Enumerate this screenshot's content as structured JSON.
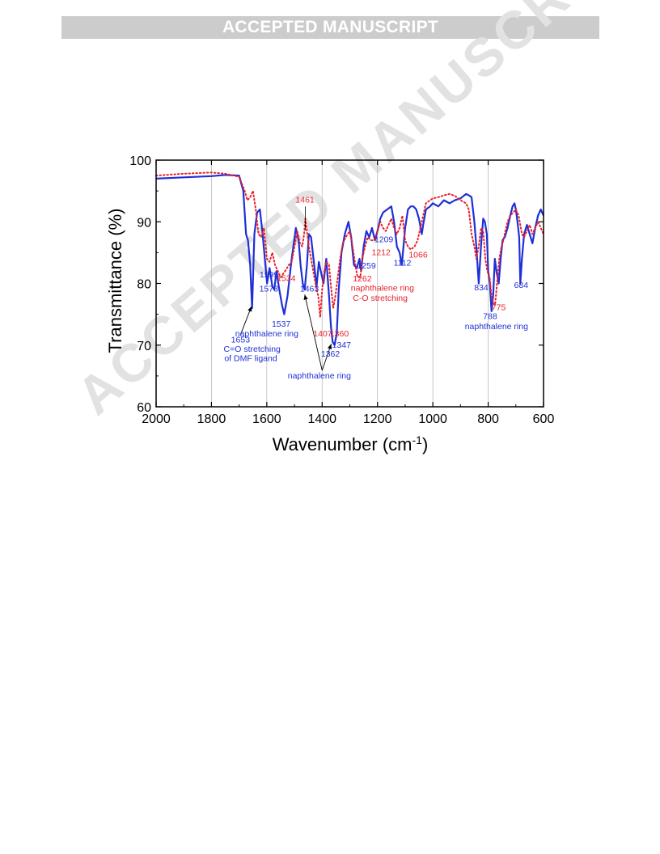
{
  "header": {
    "banner_text": "ACCEPTED MANUSCRIPT"
  },
  "watermark": {
    "text": "ACCEPTED MANUSCRIPT",
    "color": "#e2e2e2"
  },
  "chart_data": {
    "type": "line",
    "title": "",
    "xlabel": "Wavenumber (cm",
    "xlabel_sup": "-1",
    "xlabel_close": ")",
    "ylabel": "Transmittance (%)",
    "xlim": [
      2000,
      600
    ],
    "ylim": [
      60,
      100
    ],
    "x_reversed": true,
    "xticks": [
      2000,
      1800,
      1600,
      1400,
      1200,
      1000,
      800,
      600
    ],
    "yticks": [
      60,
      70,
      80,
      90,
      100
    ],
    "grid": "vertical",
    "colors": {
      "blue": "#1f2fd8",
      "red": "#e8212a",
      "grid": "#bbbbbb"
    },
    "series": [
      {
        "color": "#1f2fd8",
        "style": "solid",
        "x": [
          2000,
          1900,
          1800,
          1750,
          1700,
          1685,
          1675,
          1668,
          1660,
          1653,
          1645,
          1635,
          1625,
          1615,
          1605,
          1599,
          1590,
          1580,
          1573,
          1565,
          1555,
          1545,
          1537,
          1525,
          1510,
          1495,
          1485,
          1478,
          1470,
          1463,
          1455,
          1448,
          1440,
          1430,
          1420,
          1412,
          1405,
          1395,
          1385,
          1375,
          1368,
          1362,
          1355,
          1347,
          1340,
          1330,
          1318,
          1305,
          1295,
          1285,
          1275,
          1265,
          1259,
          1250,
          1240,
          1230,
          1220,
          1209,
          1200,
          1190,
          1180,
          1165,
          1150,
          1140,
          1130,
          1120,
          1112,
          1100,
          1090,
          1080,
          1070,
          1060,
          1050,
          1040,
          1035,
          1025,
          1010,
          1000,
          980,
          960,
          940,
          920,
          900,
          880,
          870,
          860,
          850,
          843,
          834,
          826,
          818,
          812,
          805,
          800,
          794,
          788,
          782,
          776,
          770,
          762,
          755,
          748,
          740,
          730,
          720,
          712,
          705,
          700,
          694,
          688,
          684,
          678,
          670,
          660,
          650,
          640,
          630,
          620,
          610,
          600
        ],
        "y": [
          97.0,
          97.2,
          97.4,
          97.6,
          97.5,
          95.0,
          88.0,
          87.0,
          83.0,
          76.0,
          88.0,
          91.5,
          92.0,
          88.0,
          83.0,
          80.0,
          82.5,
          79.5,
          79.0,
          82.0,
          79.0,
          76.5,
          75.0,
          78.0,
          84.0,
          89.0,
          87.0,
          83.0,
          80.0,
          79.0,
          83.0,
          88.0,
          87.5,
          83.5,
          79.5,
          83.5,
          82.0,
          80.0,
          84.0,
          78.0,
          73.0,
          70.5,
          70.0,
          72.0,
          79.0,
          85.0,
          88.0,
          90.0,
          87.5,
          83.0,
          82.5,
          84.0,
          82.0,
          86.0,
          88.5,
          87.5,
          89.0,
          87.0,
          88.5,
          90.5,
          91.5,
          92.0,
          92.5,
          90.0,
          86.0,
          85.0,
          83.0,
          89.0,
          92.0,
          92.5,
          92.5,
          92.0,
          90.5,
          88.0,
          89.5,
          92.0,
          92.5,
          93.0,
          92.5,
          93.5,
          93.0,
          93.5,
          93.8,
          94.5,
          94.3,
          94.0,
          90.0,
          86.0,
          80.0,
          86.0,
          90.5,
          90.0,
          88.0,
          82.0,
          80.0,
          75.5,
          78.0,
          84.0,
          82.0,
          80.0,
          84.0,
          87.0,
          87.5,
          89.0,
          91.0,
          92.5,
          93.0,
          92.0,
          90.0,
          87.5,
          80.0,
          84.0,
          88.0,
          89.5,
          88.0,
          86.5,
          89.0,
          91.0,
          92.0,
          91.0
        ]
      },
      {
        "color": "#e8212a",
        "style": "dotted",
        "x": [
          2000,
          1900,
          1800,
          1750,
          1700,
          1680,
          1670,
          1660,
          1650,
          1640,
          1630,
          1620,
          1610,
          1600,
          1590,
          1580,
          1570,
          1560,
          1550,
          1534,
          1520,
          1510,
          1500,
          1490,
          1480,
          1472,
          1465,
          1461,
          1455,
          1448,
          1440,
          1430,
          1420,
          1414,
          1407,
          1400,
          1392,
          1385,
          1375,
          1368,
          1360,
          1352,
          1345,
          1335,
          1325,
          1315,
          1300,
          1290,
          1280,
          1272,
          1262,
          1255,
          1245,
          1235,
          1225,
          1212,
          1200,
          1190,
          1180,
          1170,
          1160,
          1150,
          1140,
          1130,
          1120,
          1110,
          1100,
          1090,
          1080,
          1066,
          1055,
          1045,
          1035,
          1025,
          1010,
          1000,
          980,
          960,
          940,
          920,
          900,
          880,
          870,
          860,
          850,
          843,
          834,
          826,
          818,
          810,
          803,
          795,
          788,
          782,
          775,
          768,
          760,
          752,
          745,
          738,
          730,
          720,
          710,
          700,
          690,
          684,
          678,
          670,
          660,
          650,
          640,
          630,
          620,
          610,
          600
        ],
        "y": [
          97.5,
          97.8,
          98.0,
          97.8,
          97.3,
          95.0,
          93.5,
          94.0,
          95.0,
          92.0,
          88.0,
          87.5,
          89.0,
          84.0,
          83.5,
          85.0,
          83.0,
          82.0,
          81.0,
          82.0,
          83.0,
          83.5,
          86.0,
          88.5,
          86.5,
          86.0,
          88.0,
          90.5,
          88.5,
          86.0,
          84.0,
          81.5,
          79.0,
          78.0,
          74.5,
          79.0,
          82.0,
          83.5,
          83.0,
          79.5,
          76.0,
          78.0,
          80.5,
          84.0,
          86.5,
          87.5,
          88.5,
          86.0,
          83.0,
          81.0,
          81.0,
          84.0,
          86.0,
          87.5,
          87.0,
          87.0,
          88.5,
          90.0,
          89.0,
          88.5,
          89.5,
          90.5,
          89.0,
          88.0,
          89.0,
          91.0,
          87.0,
          86.0,
          85.5,
          86.0,
          87.0,
          89.0,
          91.0,
          93.0,
          93.5,
          93.8,
          94.0,
          94.3,
          94.5,
          94.2,
          93.5,
          93.0,
          92.0,
          88.0,
          86.0,
          84.0,
          86.0,
          89.0,
          88.5,
          84.0,
          82.0,
          81.0,
          78.0,
          77.0,
          76.5,
          80.0,
          84.0,
          86.0,
          87.0,
          88.5,
          90.0,
          91.0,
          91.5,
          92.0,
          91.0,
          89.5,
          88.0,
          87.5,
          88.5,
          89.5,
          88.0,
          89.0,
          90.0,
          89.0,
          88.0
        ]
      }
    ],
    "annotations": [
      {
        "text": "1461",
        "x": 1462,
        "y": 93.1,
        "color": "#e8212a"
      },
      {
        "text": "1599",
        "x": 1592,
        "y": 81.0,
        "color": "#1f2fd8"
      },
      {
        "text": "1573",
        "x": 1593,
        "y": 78.7,
        "color": "#1f2fd8"
      },
      {
        "text": "1534",
        "x": 1530,
        "y": 80.4,
        "color": "#e8212a"
      },
      {
        "text": "1463",
        "x": 1446,
        "y": 78.7,
        "color": "#1f2fd8"
      },
      {
        "text": "1537",
        "x": 1548,
        "y": 73.0,
        "color": "#1f2fd8"
      },
      {
        "text": "naphthalene ring",
        "x": 1600,
        "y": 71.4,
        "color": "#1f2fd8"
      },
      {
        "text": "1653",
        "x": 1695,
        "y": 70.4,
        "color": "#1f2fd8"
      },
      {
        "text": "C=O stretching",
        "x": 1653,
        "y": 68.9,
        "color": "#1f2fd8"
      },
      {
        "text": "of DMF ligand",
        "x": 1658,
        "y": 67.4,
        "color": "#1f2fd8"
      },
      {
        "text": "1407",
        "x": 1398,
        "y": 71.4,
        "color": "#e8212a"
      },
      {
        "text": "1360",
        "x": 1338,
        "y": 71.4,
        "color": "#e8212a"
      },
      {
        "text": "1347",
        "x": 1330,
        "y": 69.6,
        "color": "#1f2fd8"
      },
      {
        "text": "1362",
        "x": 1370,
        "y": 68.1,
        "color": "#1f2fd8"
      },
      {
        "text": "naphthalene ring",
        "x": 1410,
        "y": 64.6,
        "color": "#1f2fd8"
      },
      {
        "text": "1209",
        "x": 1177,
        "y": 86.7,
        "color": "#1f2fd8"
      },
      {
        "text": "1212",
        "x": 1187,
        "y": 84.6,
        "color": "#e8212a"
      },
      {
        "text": "1259",
        "x": 1240,
        "y": 82.4,
        "color": "#1f2fd8"
      },
      {
        "text": "1112",
        "x": 1110,
        "y": 82.9,
        "color": "#1f2fd8"
      },
      {
        "text": "1066",
        "x": 1053,
        "y": 84.2,
        "color": "#e8212a"
      },
      {
        "text": "1262",
        "x": 1255,
        "y": 80.3,
        "color": "#e8212a"
      },
      {
        "text": "naphthalene ring",
        "x": 1182,
        "y": 78.8,
        "color": "#e8212a"
      },
      {
        "text": "C-O stretching",
        "x": 1190,
        "y": 77.2,
        "color": "#e8212a"
      },
      {
        "text": "834",
        "x": 825,
        "y": 78.9,
        "color": "#1f2fd8"
      },
      {
        "text": "684",
        "x": 681,
        "y": 79.3,
        "color": "#1f2fd8"
      },
      {
        "text": "775",
        "x": 762,
        "y": 75.7,
        "color": "#e8212a"
      },
      {
        "text": "788",
        "x": 793,
        "y": 74.2,
        "color": "#1f2fd8"
      },
      {
        "text": "naphthalene ring",
        "x": 770,
        "y": 72.6,
        "color": "#1f2fd8"
      }
    ],
    "arrows": [
      {
        "from": [
          1695,
          71.7
        ],
        "to": [
          1655,
          76.3
        ]
      },
      {
        "from": [
          1400,
          65.9
        ],
        "to": [
          1463,
          78.2
        ]
      },
      {
        "from": [
          1400,
          65.9
        ],
        "to": [
          1367,
          70.2
        ]
      }
    ],
    "leader_lines": [
      {
        "from": [
          1461,
          92.5
        ],
        "to": [
          1461,
          88.6
        ]
      }
    ]
  }
}
